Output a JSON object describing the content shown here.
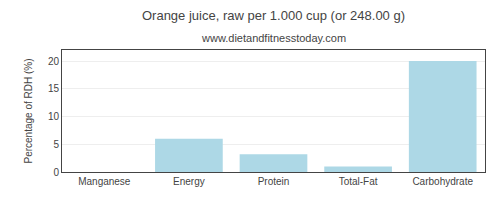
{
  "chart_data": {
    "type": "bar",
    "title": "Orange juice, raw per 1.000 cup (or 248.00 g)",
    "subtitle": "www.dietandfitnesstoday.com",
    "categories": [
      "Manganese",
      "Energy",
      "Protein",
      "Total-Fat",
      "Carbohydrate"
    ],
    "values": [
      0.0,
      6.0,
      3.2,
      1.0,
      20.0
    ],
    "color": "#add8e6",
    "ylabel": "Percentage of RDH (%)",
    "ylim": [
      0,
      22
    ],
    "yticks": [
      0,
      5,
      10,
      15,
      20
    ],
    "grid": true
  }
}
